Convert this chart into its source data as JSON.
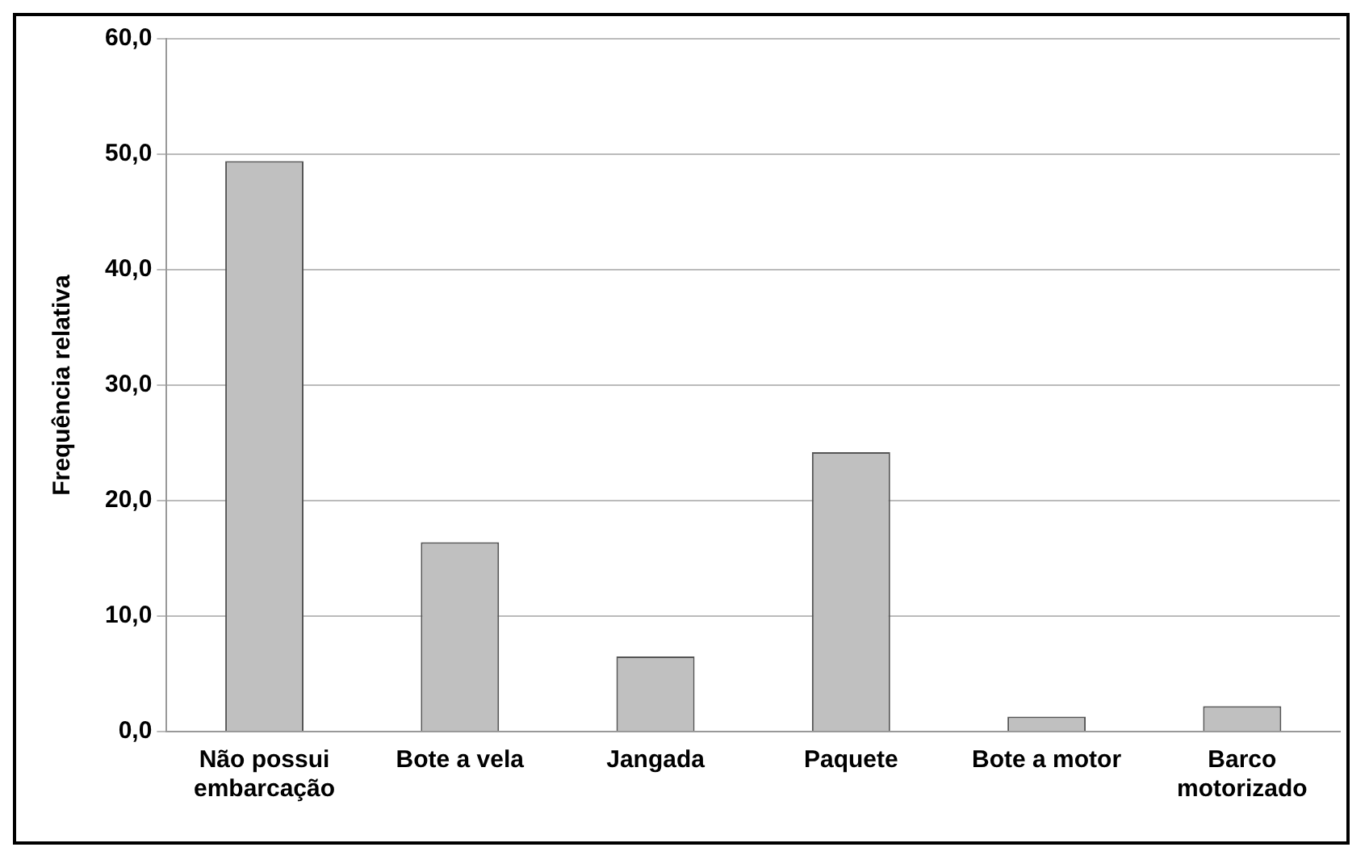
{
  "chart_data": {
    "type": "bar",
    "ylabel": "Frequência relativa",
    "categories": [
      "Não possui embarcação",
      "Bote a vela",
      "Jangada",
      "Paquete",
      "Bote a motor",
      "Barco motorizado"
    ],
    "values": [
      49.4,
      16.4,
      6.5,
      24.2,
      1.3,
      2.2
    ],
    "color": "#c0c0c0",
    "ylim": [
      0,
      60
    ],
    "yticks": [
      {
        "value": 0,
        "label": "0,0"
      },
      {
        "value": 10,
        "label": "10,0"
      },
      {
        "value": 20,
        "label": "20,0"
      },
      {
        "value": 30,
        "label": "30,0"
      },
      {
        "value": 40,
        "label": "40,0"
      },
      {
        "value": 50,
        "label": "50,0"
      },
      {
        "value": 60,
        "label": "60,0"
      }
    ],
    "grid": "y",
    "legend": false
  }
}
